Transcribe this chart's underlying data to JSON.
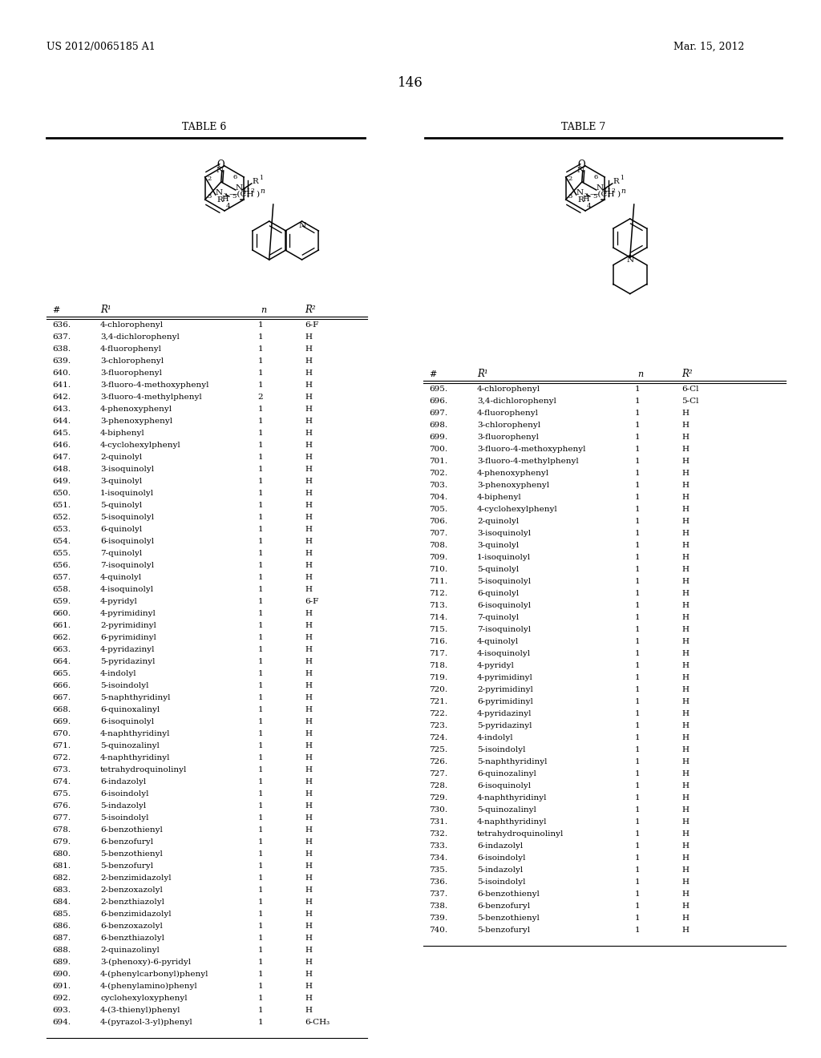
{
  "header_left": "US 2012/0065185 A1",
  "header_right": "Mar. 15, 2012",
  "page_number": "146",
  "table6_title": "TABLE 6",
  "table7_title": "TABLE 7",
  "table6_rows": [
    [
      "636.",
      "4-chlorophenyl",
      "1",
      "6-F"
    ],
    [
      "637.",
      "3,4-dichlorophenyl",
      "1",
      "H"
    ],
    [
      "638.",
      "4-fluorophenyl",
      "1",
      "H"
    ],
    [
      "639.",
      "3-chlorophenyl",
      "1",
      "H"
    ],
    [
      "640.",
      "3-fluorophenyl",
      "1",
      "H"
    ],
    [
      "641.",
      "3-fluoro-4-methoxyphenyl",
      "1",
      "H"
    ],
    [
      "642.",
      "3-fluoro-4-methylphenyl",
      "2",
      "H"
    ],
    [
      "643.",
      "4-phenoxyphenyl",
      "1",
      "H"
    ],
    [
      "644.",
      "3-phenoxyphenyl",
      "1",
      "H"
    ],
    [
      "645.",
      "4-biphenyl",
      "1",
      "H"
    ],
    [
      "646.",
      "4-cyclohexylphenyl",
      "1",
      "H"
    ],
    [
      "647.",
      "2-quinolyl",
      "1",
      "H"
    ],
    [
      "648.",
      "3-isoquinolyl",
      "1",
      "H"
    ],
    [
      "649.",
      "3-quinolyl",
      "1",
      "H"
    ],
    [
      "650.",
      "1-isoquinolyl",
      "1",
      "H"
    ],
    [
      "651.",
      "5-quinolyl",
      "1",
      "H"
    ],
    [
      "652.",
      "5-isoquinolyl",
      "1",
      "H"
    ],
    [
      "653.",
      "6-quinolyl",
      "1",
      "H"
    ],
    [
      "654.",
      "6-isoquinolyl",
      "1",
      "H"
    ],
    [
      "655.",
      "7-quinolyl",
      "1",
      "H"
    ],
    [
      "656.",
      "7-isoquinolyl",
      "1",
      "H"
    ],
    [
      "657.",
      "4-quinolyl",
      "1",
      "H"
    ],
    [
      "658.",
      "4-isoquinolyl",
      "1",
      "H"
    ],
    [
      "659.",
      "4-pyridyl",
      "1",
      "6-F"
    ],
    [
      "660.",
      "4-pyrimidinyl",
      "1",
      "H"
    ],
    [
      "661.",
      "2-pyrimidinyl",
      "1",
      "H"
    ],
    [
      "662.",
      "6-pyrimidinyl",
      "1",
      "H"
    ],
    [
      "663.",
      "4-pyridazinyl",
      "1",
      "H"
    ],
    [
      "664.",
      "5-pyridazinyl",
      "1",
      "H"
    ],
    [
      "665.",
      "4-indolyl",
      "1",
      "H"
    ],
    [
      "666.",
      "5-isoindolyl",
      "1",
      "H"
    ],
    [
      "667.",
      "5-naphthyridinyl",
      "1",
      "H"
    ],
    [
      "668.",
      "6-quinoxalinyl",
      "1",
      "H"
    ],
    [
      "669.",
      "6-isoquinolyl",
      "1",
      "H"
    ],
    [
      "670.",
      "4-naphthyridinyl",
      "1",
      "H"
    ],
    [
      "671.",
      "5-quinozalinyl",
      "1",
      "H"
    ],
    [
      "672.",
      "4-naphthyridinyl",
      "1",
      "H"
    ],
    [
      "673.",
      "tetrahydroquinolinyl",
      "1",
      "H"
    ],
    [
      "674.",
      "6-indazolyl",
      "1",
      "H"
    ],
    [
      "675.",
      "6-isoindolyl",
      "1",
      "H"
    ],
    [
      "676.",
      "5-indazolyl",
      "1",
      "H"
    ],
    [
      "677.",
      "5-isoindolyl",
      "1",
      "H"
    ],
    [
      "678.",
      "6-benzothienyl",
      "1",
      "H"
    ],
    [
      "679.",
      "6-benzofuryl",
      "1",
      "H"
    ],
    [
      "680.",
      "5-benzothienyl",
      "1",
      "H"
    ],
    [
      "681.",
      "5-benzofuryl",
      "1",
      "H"
    ],
    [
      "682.",
      "2-benzimidazolyl",
      "1",
      "H"
    ],
    [
      "683.",
      "2-benzoxazolyl",
      "1",
      "H"
    ],
    [
      "684.",
      "2-benzthiazolyl",
      "1",
      "H"
    ],
    [
      "685.",
      "6-benzimidazolyl",
      "1",
      "H"
    ],
    [
      "686.",
      "6-benzoxazolyl",
      "1",
      "H"
    ],
    [
      "687.",
      "6-benzthiazolyl",
      "1",
      "H"
    ],
    [
      "688.",
      "2-quinazolinyl",
      "1",
      "H"
    ],
    [
      "689.",
      "3-(phenoxy)-6-pyridyl",
      "1",
      "H"
    ],
    [
      "690.",
      "4-(phenylcarbonyl)phenyl",
      "1",
      "H"
    ],
    [
      "691.",
      "4-(phenylamino)phenyl",
      "1",
      "H"
    ],
    [
      "692.",
      "cyclohexyloxyphenyl",
      "1",
      "H"
    ],
    [
      "693.",
      "4-(3-thienyl)phenyl",
      "1",
      "H"
    ],
    [
      "694.",
      "4-(pyrazol-3-yl)phenyl",
      "1",
      "6-CH₃"
    ]
  ],
  "table7_rows": [
    [
      "695.",
      "4-chlorophenyl",
      "1",
      "6-Cl"
    ],
    [
      "696.",
      "3,4-dichlorophenyl",
      "1",
      "5-Cl"
    ],
    [
      "697.",
      "4-fluorophenyl",
      "1",
      "H"
    ],
    [
      "698.",
      "3-chlorophenyl",
      "1",
      "H"
    ],
    [
      "699.",
      "3-fluorophenyl",
      "1",
      "H"
    ],
    [
      "700.",
      "3-fluoro-4-methoxyphenyl",
      "1",
      "H"
    ],
    [
      "701.",
      "3-fluoro-4-methylphenyl",
      "1",
      "H"
    ],
    [
      "702.",
      "4-phenoxyphenyl",
      "1",
      "H"
    ],
    [
      "703.",
      "3-phenoxyphenyl",
      "1",
      "H"
    ],
    [
      "704.",
      "4-biphenyl",
      "1",
      "H"
    ],
    [
      "705.",
      "4-cyclohexylphenyl",
      "1",
      "H"
    ],
    [
      "706.",
      "2-quinolyl",
      "1",
      "H"
    ],
    [
      "707.",
      "3-isoquinolyl",
      "1",
      "H"
    ],
    [
      "708.",
      "3-quinolyl",
      "1",
      "H"
    ],
    [
      "709.",
      "1-isoquinolyl",
      "1",
      "H"
    ],
    [
      "710.",
      "5-quinolyl",
      "1",
      "H"
    ],
    [
      "711.",
      "5-isoquinolyl",
      "1",
      "H"
    ],
    [
      "712.",
      "6-quinolyl",
      "1",
      "H"
    ],
    [
      "713.",
      "6-isoquinolyl",
      "1",
      "H"
    ],
    [
      "714.",
      "7-quinolyl",
      "1",
      "H"
    ],
    [
      "715.",
      "7-isoquinolyl",
      "1",
      "H"
    ],
    [
      "716.",
      "4-quinolyl",
      "1",
      "H"
    ],
    [
      "717.",
      "4-isoquinolyl",
      "1",
      "H"
    ],
    [
      "718.",
      "4-pyridyl",
      "1",
      "H"
    ],
    [
      "719.",
      "4-pyrimidinyl",
      "1",
      "H"
    ],
    [
      "720.",
      "2-pyrimidinyl",
      "1",
      "H"
    ],
    [
      "721.",
      "6-pyrimidinyl",
      "1",
      "H"
    ],
    [
      "722.",
      "4-pyridazinyl",
      "1",
      "H"
    ],
    [
      "723.",
      "5-pyridazinyl",
      "1",
      "H"
    ],
    [
      "724.",
      "4-indolyl",
      "1",
      "H"
    ],
    [
      "725.",
      "5-isoindolyl",
      "1",
      "H"
    ],
    [
      "726.",
      "5-naphthyridinyl",
      "1",
      "H"
    ],
    [
      "727.",
      "6-quinozalinyl",
      "1",
      "H"
    ],
    [
      "728.",
      "6-isoquinolyl",
      "1",
      "H"
    ],
    [
      "729.",
      "4-naphthyridinyl",
      "1",
      "H"
    ],
    [
      "730.",
      "5-quinozalinyl",
      "1",
      "H"
    ],
    [
      "731.",
      "4-naphthyridinyl",
      "1",
      "H"
    ],
    [
      "732.",
      "tetrahydroquinolinyl",
      "1",
      "H"
    ],
    [
      "733.",
      "6-indazolyl",
      "1",
      "H"
    ],
    [
      "734.",
      "6-isoindolyl",
      "1",
      "H"
    ],
    [
      "735.",
      "5-indazolyl",
      "1",
      "H"
    ],
    [
      "736.",
      "5-isoindolyl",
      "1",
      "H"
    ],
    [
      "737.",
      "6-benzothienyl",
      "1",
      "H"
    ],
    [
      "738.",
      "6-benzofuryl",
      "1",
      "H"
    ],
    [
      "739.",
      "5-benzothienyl",
      "1",
      "H"
    ],
    [
      "740.",
      "5-benzofuryl",
      "1",
      "H"
    ]
  ],
  "bg_color": "#ffffff",
  "text_color": "#000000"
}
